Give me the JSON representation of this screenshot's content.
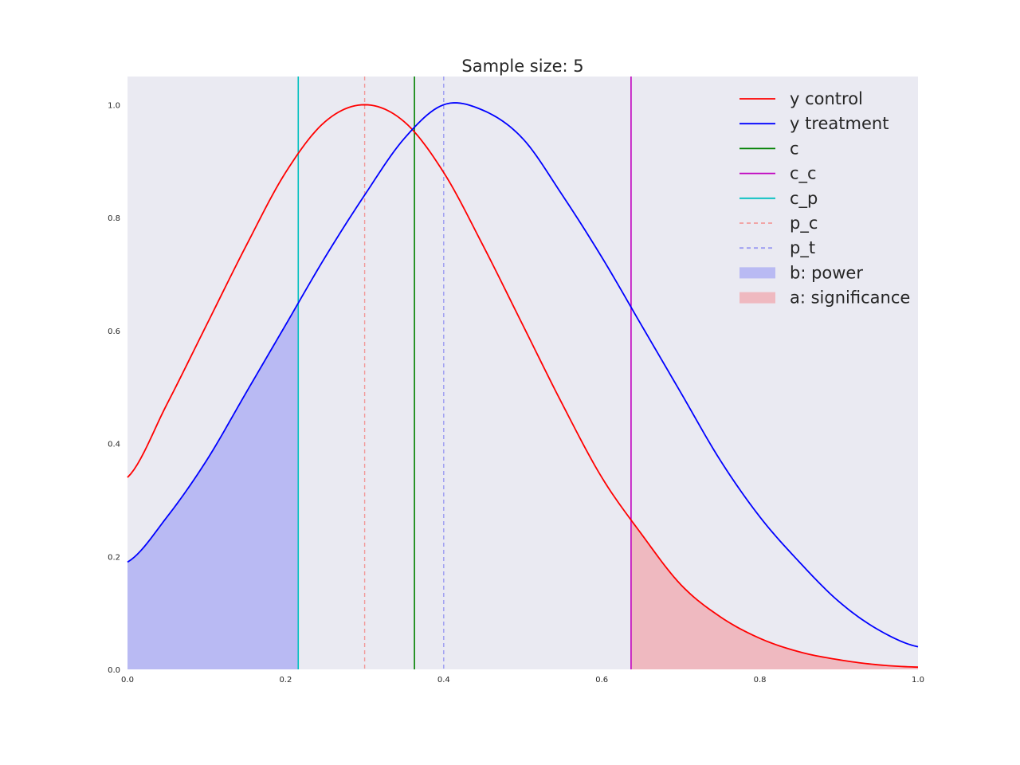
{
  "chart_data": {
    "type": "line",
    "title": "Sample size: 5",
    "xlabel": "",
    "ylabel": "",
    "xlim": [
      0.0,
      1.0
    ],
    "ylim": [
      0.0,
      1.05
    ],
    "grid": false,
    "background_color": "#eaeaf2",
    "legend_position": "top-right",
    "x_ticks": [
      "0.0",
      "0.2",
      "0.4",
      "0.6",
      "0.8",
      "1.0"
    ],
    "y_ticks": [
      "0.0",
      "0.2",
      "0.4",
      "0.6",
      "0.8",
      "1.0"
    ],
    "series": [
      {
        "name": "y control",
        "kind": "curve",
        "color": "#ff0000",
        "x": [
          0.0,
          0.05,
          0.1,
          0.15,
          0.2,
          0.25,
          0.3,
          0.35,
          0.4,
          0.45,
          0.5,
          0.55,
          0.6,
          0.65,
          0.7,
          0.75,
          0.8,
          0.85,
          0.9,
          0.95,
          1.0
        ],
        "y": [
          0.34,
          0.47,
          0.61,
          0.75,
          0.88,
          0.97,
          1.0,
          0.97,
          0.88,
          0.75,
          0.61,
          0.47,
          0.34,
          0.24,
          0.15,
          0.093,
          0.055,
          0.031,
          0.017,
          0.008,
          0.004
        ]
      },
      {
        "name": "y treatment",
        "kind": "curve",
        "color": "#0000ff",
        "x": [
          0.0,
          0.05,
          0.1,
          0.15,
          0.2,
          0.25,
          0.3,
          0.35,
          0.4,
          0.45,
          0.5,
          0.55,
          0.6,
          0.65,
          0.7,
          0.75,
          0.8,
          0.85,
          0.9,
          0.95,
          1.0
        ],
        "y": [
          0.19,
          0.27,
          0.37,
          0.49,
          0.61,
          0.73,
          0.84,
          0.94,
          1.0,
          0.99,
          0.94,
          0.84,
          0.73,
          0.61,
          0.49,
          0.37,
          0.27,
          0.19,
          0.12,
          0.07,
          0.04
        ]
      },
      {
        "name": "c",
        "kind": "vline",
        "color": "#008000",
        "x": 0.363,
        "dashed": false
      },
      {
        "name": "c_c",
        "kind": "vline",
        "color": "#bf00bf",
        "x": 0.637,
        "dashed": false
      },
      {
        "name": "c_p",
        "kind": "vline",
        "color": "#00bfbf",
        "x": 0.216,
        "dashed": false
      },
      {
        "name": "p_c",
        "kind": "vline",
        "color": "#f29a9a",
        "x": 0.3,
        "dashed": true
      },
      {
        "name": "p_t",
        "kind": "vline",
        "color": "#9a9af2",
        "x": 0.4,
        "dashed": true
      },
      {
        "name": "b: power",
        "kind": "fill",
        "color": "#b9baf3",
        "of": "y treatment",
        "range": [
          0.0,
          0.216
        ]
      },
      {
        "name": "a: significance",
        "kind": "fill",
        "color": "#efb9c0",
        "of": "y control",
        "range": [
          0.637,
          1.0
        ]
      }
    ]
  }
}
